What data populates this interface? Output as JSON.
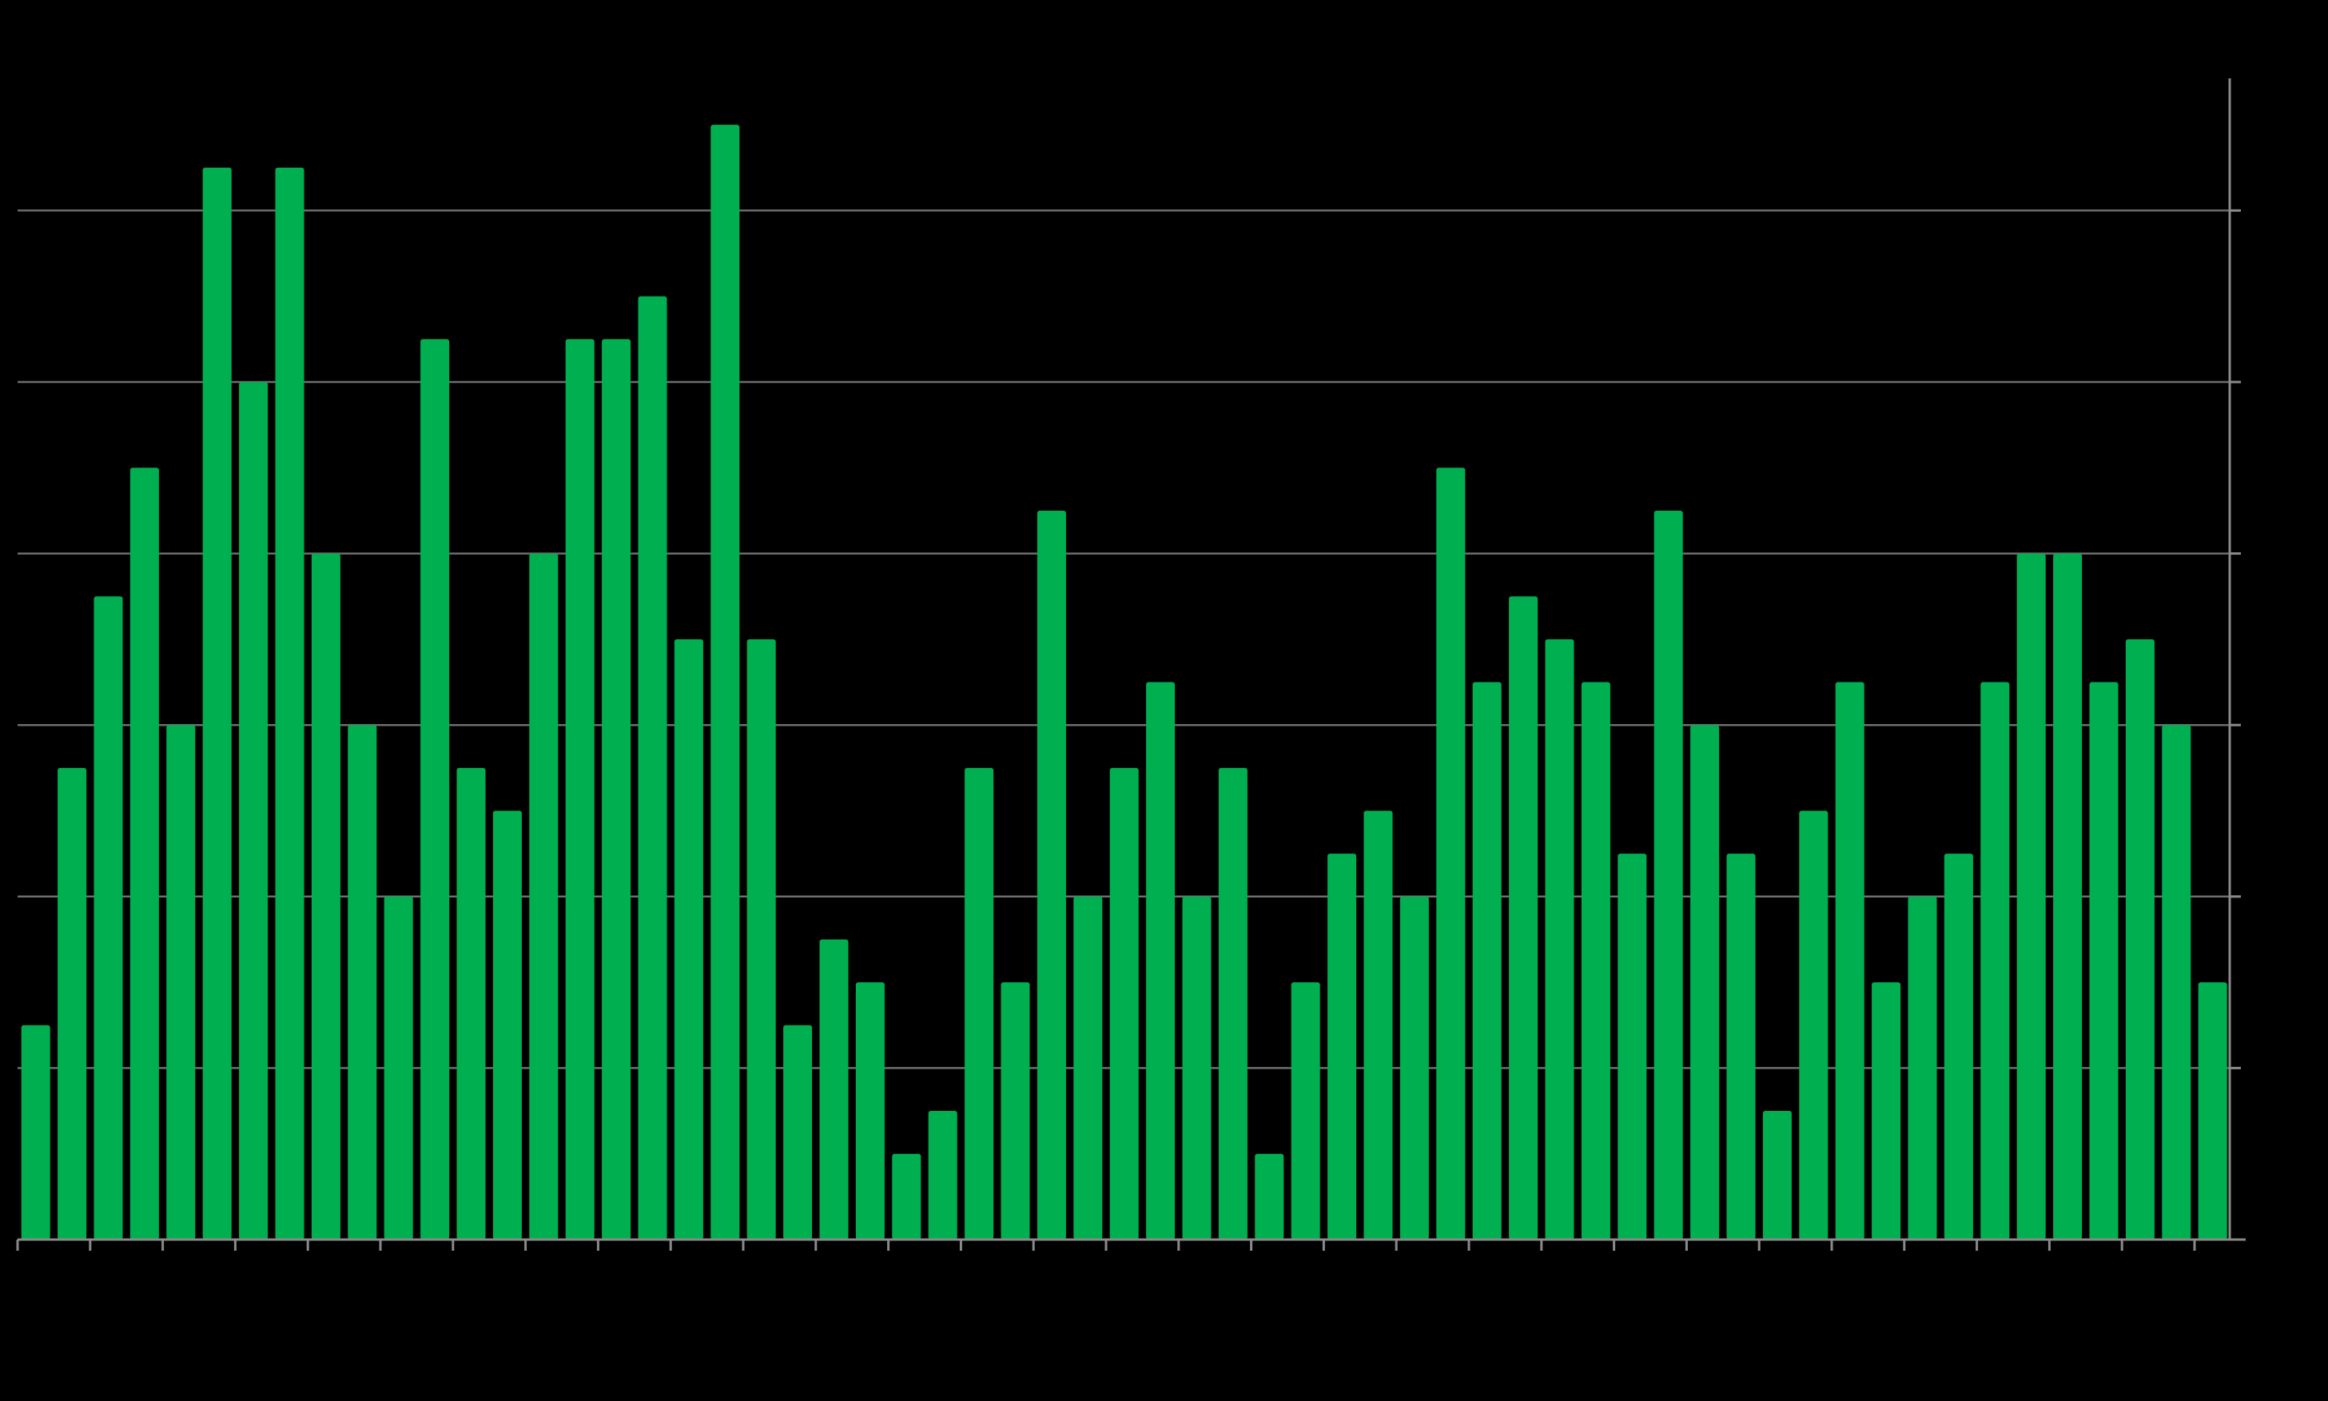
{
  "chart_data": {
    "type": "bar",
    "title": "",
    "xlabel": "",
    "ylabel": "",
    "grid": true,
    "y_axis_side": "right",
    "ylim": [
      0,
      13.5
    ],
    "y_gridlines": [
      0,
      2,
      4,
      6,
      8,
      10,
      12
    ],
    "values": [
      2.5,
      5.5,
      7.5,
      9,
      6,
      12.5,
      10,
      12.5,
      8,
      6,
      4,
      10.5,
      5.5,
      5,
      8,
      10.5,
      10.5,
      11,
      7,
      13,
      7,
      2.5,
      3.5,
      3,
      1,
      1.5,
      5.5,
      3,
      8.5,
      4,
      5.5,
      6.5,
      4,
      5.5,
      1,
      3,
      4.5,
      5,
      4,
      9,
      6.5,
      7.5,
      7,
      6.5,
      4.5,
      8.5,
      6,
      4.5,
      1.5,
      5,
      6.5,
      3,
      4,
      4.5,
      6.5,
      8,
      8,
      6.5,
      7,
      6,
      3
    ],
    "colors": {
      "bar": "#00b050",
      "background": "#000000",
      "grid": "#6e6e6e",
      "axis": "#8a8a8a"
    }
  }
}
